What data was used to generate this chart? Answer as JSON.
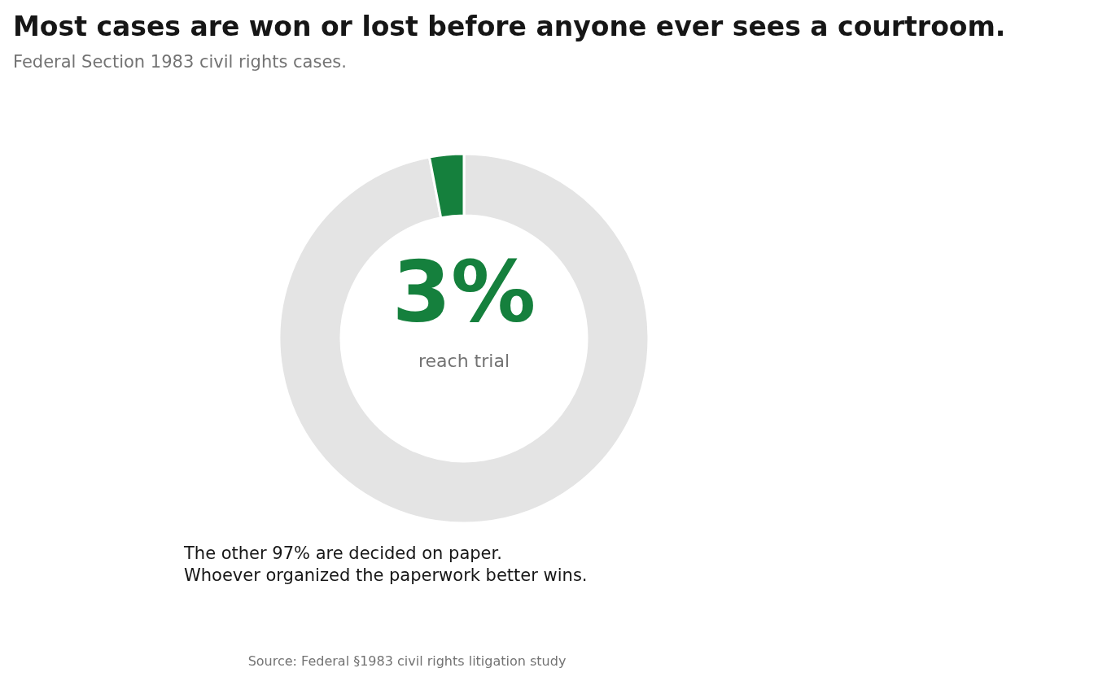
{
  "chart_data": {
    "type": "donut",
    "title": "Most cases are won or lost before anyone ever sees a courtroom.",
    "subtitle": "Federal Section 1983 civil rights cases.",
    "categories": [
      null,
      "reach trial"
    ],
    "values": [
      97,
      3
    ],
    "colors": [
      "#e4e4e4",
      "#15803d"
    ],
    "value_labels": [
      null,
      "3%"
    ],
    "annotations": [
      "The other 97% are decided on paper.\nWhoever organized the paperwork better wins.",
      "Source: Federal §1983 civil rights litigation study"
    ]
  }
}
